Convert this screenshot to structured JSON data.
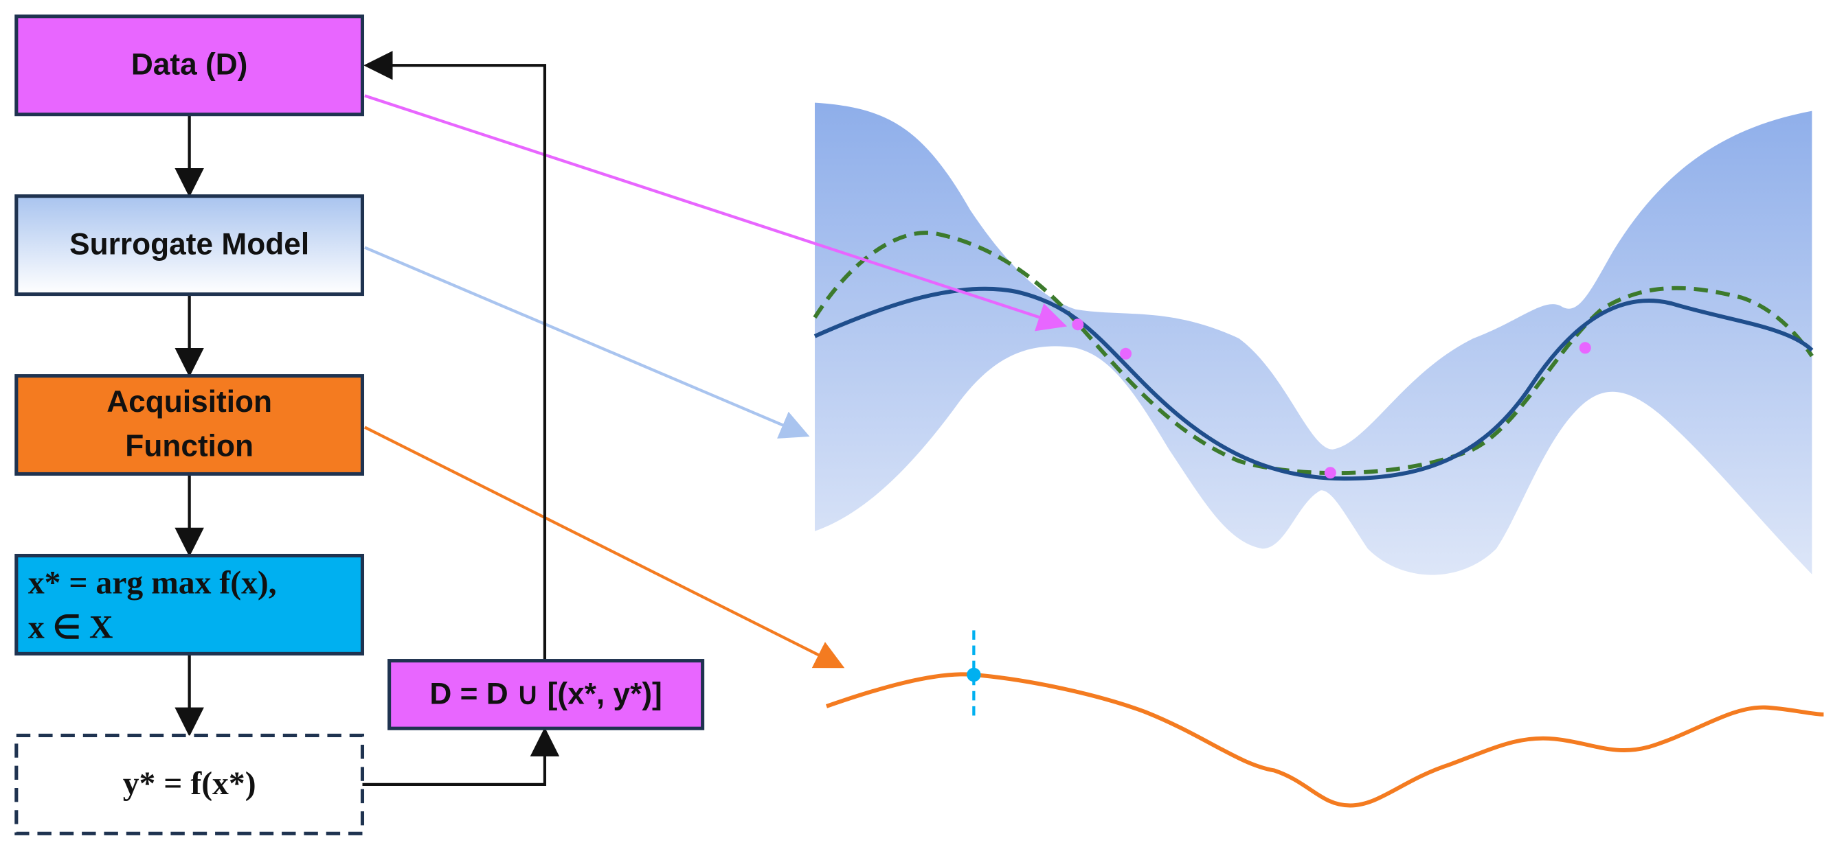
{
  "nodes": [
    {
      "lines": [
        "Data (D)"
      ]
    },
    {
      "lines": [
        "Surrogate Model"
      ]
    },
    {
      "lines": [
        "Acquisition",
        "Function"
      ]
    },
    {
      "lines": [
        "x* = arg max f(x),",
        "x ∈ X"
      ]
    },
    {
      "lines": [
        "y* = f(x*)"
      ]
    },
    {
      "lines": [
        "D = D ∪ [(x*, y*)]"
      ]
    }
  ]
}
